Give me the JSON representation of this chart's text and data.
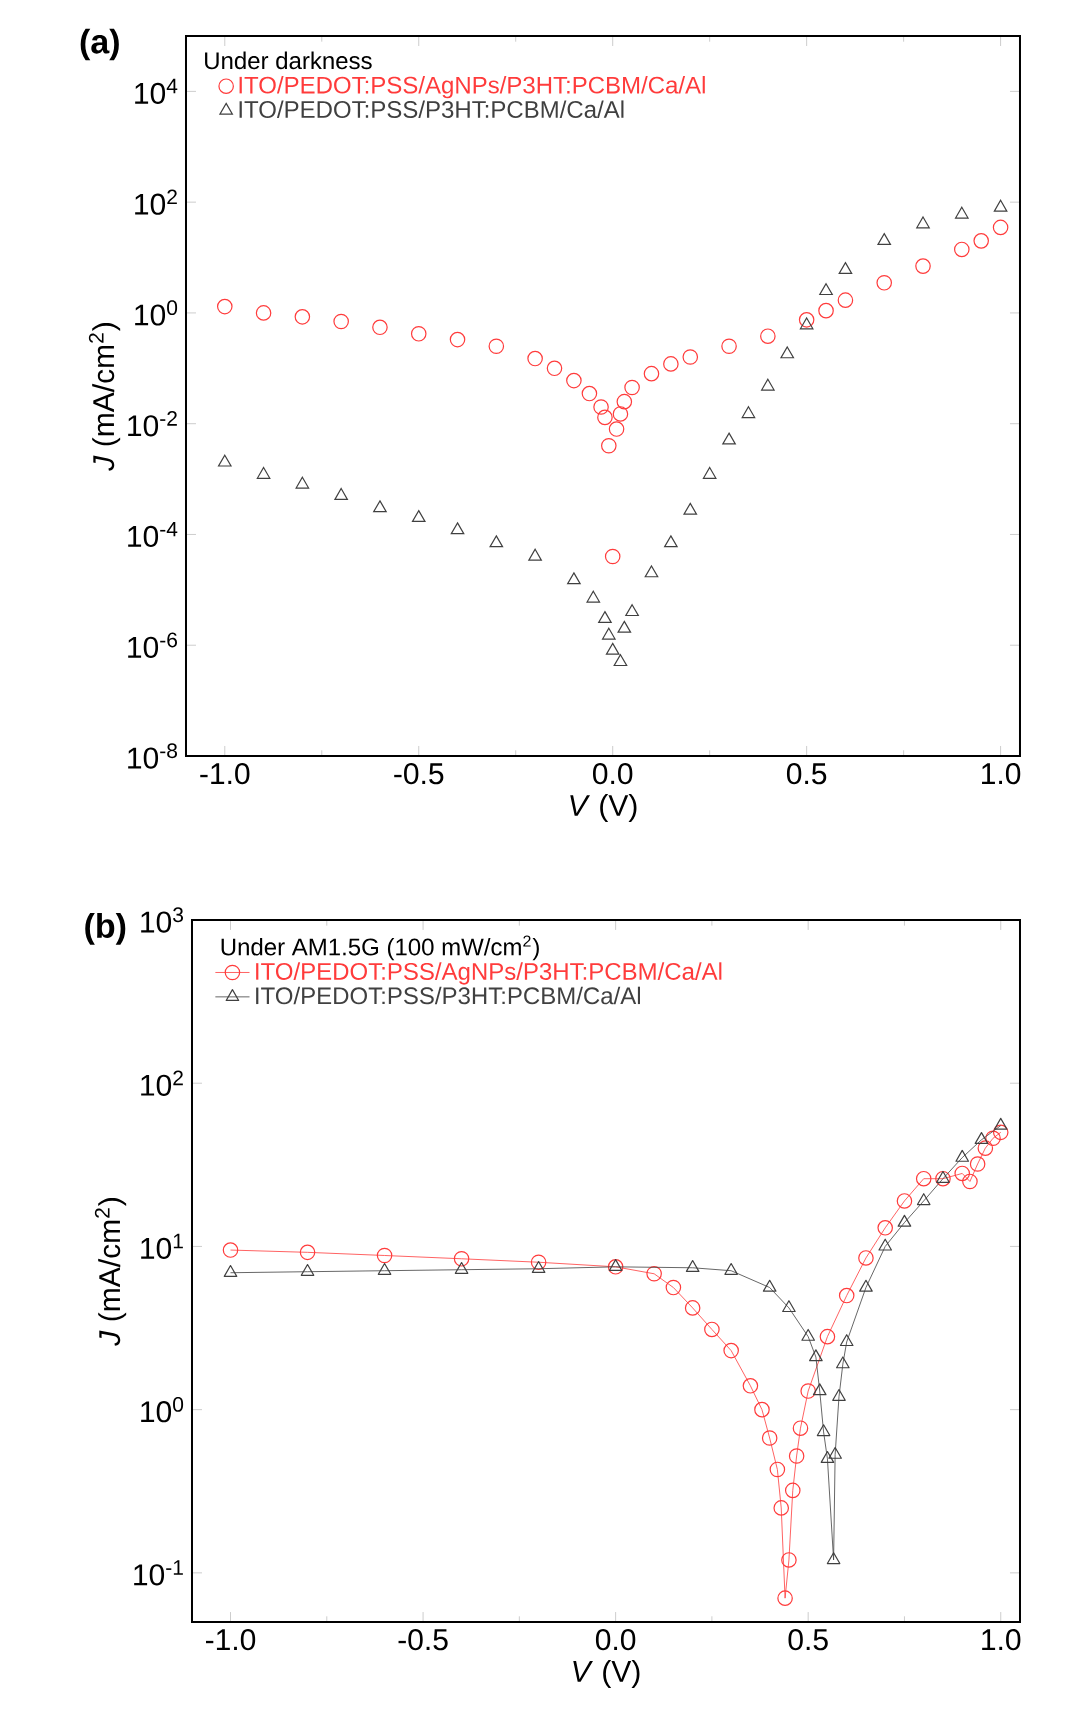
{
  "chart_data": [
    {
      "type": "scatter",
      "legend_title": "Under darkness",
      "annotations": [
        "(a)"
      ],
      "xlabel": "*V* (V)",
      "ylabel": "*J* (mA/cm$^{2}$)",
      "log": "y",
      "legend": "top left",
      "grid": false,
      "xlim": [
        -1.1,
        1.05
      ],
      "ylim": [
        1e-08,
        100000.0
      ],
      "xticks": [
        {
          "value": -1,
          "label": "-1.0"
        },
        {
          "value": -0.5,
          "label": "-0.5"
        },
        {
          "value": 0,
          "label": "0.0"
        },
        {
          "value": 0.5,
          "label": "0.5"
        },
        {
          "value": 1,
          "label": "1.0"
        }
      ],
      "yticks": [
        {
          "value": 1e-08,
          "label": "10$^{-8}$"
        },
        {
          "value": 1e-06,
          "label": "10$^{-6}$"
        },
        {
          "value": 0.0001,
          "label": "10$^{-4}$"
        },
        {
          "value": 0.01,
          "label": "10$^{-2}$"
        },
        {
          "value": 1,
          "label": "10$^{0}$"
        },
        {
          "value": 100,
          "label": "10$^{2}$"
        },
        {
          "value": 10000,
          "label": "10$^{4}$"
        }
      ],
      "series": [
        {
          "name": "ITO/PEDOT:PSS/AgNPs/P3HT:PCBM/Ca/Al",
          "color": "#ff3b3b",
          "marker": "circle",
          "x": [
            -1.0,
            -0.9,
            -0.8,
            -0.7,
            -0.6,
            -0.5,
            -0.4,
            -0.3,
            -0.2,
            -0.15,
            -0.1,
            -0.06,
            -0.03,
            -0.02,
            -0.01,
            0.0,
            0.01,
            0.02,
            0.03,
            0.05,
            0.1,
            0.15,
            0.2,
            0.3,
            0.4,
            0.5,
            0.55,
            0.6,
            0.7,
            0.8,
            0.9,
            0.95,
            1.0
          ],
          "values": [
            1.3,
            1.0,
            0.85,
            0.7,
            0.55,
            0.42,
            0.33,
            0.25,
            0.15,
            0.1,
            0.06,
            0.035,
            0.02,
            0.013,
            0.004,
            4e-05,
            0.008,
            0.015,
            0.025,
            0.045,
            0.08,
            0.12,
            0.16,
            0.25,
            0.38,
            0.75,
            1.1,
            1.7,
            3.5,
            7,
            14,
            20,
            35
          ]
        },
        {
          "name": "ITO/PEDOT:PSS/P3HT:PCBM/Ca/Al",
          "color": "#404040",
          "marker": "triangle",
          "x": [
            -1.0,
            -0.9,
            -0.8,
            -0.7,
            -0.6,
            -0.5,
            -0.4,
            -0.3,
            -0.2,
            -0.1,
            -0.05,
            -0.02,
            -0.01,
            0.0,
            0.02,
            0.03,
            0.05,
            0.1,
            0.15,
            0.2,
            0.25,
            0.3,
            0.35,
            0.4,
            0.45,
            0.5,
            0.55,
            0.6,
            0.7,
            0.8,
            0.9,
            1.0
          ],
          "values": [
            0.002,
            0.0012,
            0.0008,
            0.0005,
            0.0003,
            0.0002,
            0.00012,
            7e-05,
            4e-05,
            1.5e-05,
            7e-06,
            3e-06,
            1.5e-06,
            8e-07,
            5e-07,
            2e-06,
            4e-06,
            2e-05,
            7e-05,
            0.00027,
            0.0012,
            0.005,
            0.015,
            0.047,
            0.18,
            0.6,
            2.5,
            6,
            20,
            40,
            60,
            80
          ]
        }
      ]
    },
    {
      "type": "line",
      "legend_title": "Under AM1.5G (100 mW/cm$^{2}$)",
      "annotations": [
        "(b)"
      ],
      "xlabel": "*V* (V)",
      "ylabel": "*J* (mA/cm$^{2}$)",
      "log": "y",
      "legend": "top left",
      "grid": false,
      "line_style": "solid",
      "xlim": [
        -1.1,
        1.05
      ],
      "ylim": [
        0.05,
        1000
      ],
      "xticks": [
        {
          "value": -1,
          "label": "-1.0"
        },
        {
          "value": -0.5,
          "label": "-0.5"
        },
        {
          "value": 0,
          "label": "0.0"
        },
        {
          "value": 0.5,
          "label": "0.5"
        },
        {
          "value": 1,
          "label": "1.0"
        }
      ],
      "yticks": [
        {
          "value": 0.1,
          "label": "10$^{-1}$"
        },
        {
          "value": 1,
          "label": "10$^{0}$"
        },
        {
          "value": 10,
          "label": "10$^{1}$"
        },
        {
          "value": 100,
          "label": "10$^{2}$"
        },
        {
          "value": 1000,
          "label": "10$^{3}$"
        }
      ],
      "series": [
        {
          "name": "ITO/PEDOT:PSS/AgNPs/P3HT:PCBM/Ca/Al",
          "color": "#ff3b3b",
          "marker": "circle",
          "x": [
            -1.0,
            -0.8,
            -0.6,
            -0.4,
            -0.2,
            0.0,
            0.1,
            0.15,
            0.2,
            0.25,
            0.3,
            0.35,
            0.38,
            0.4,
            0.42,
            0.43,
            0.44,
            0.45,
            0.46,
            0.47,
            0.48,
            0.5,
            0.55,
            0.6,
            0.65,
            0.7,
            0.75,
            0.8,
            0.85,
            0.9,
            0.92,
            0.94,
            0.96,
            0.98,
            1.0
          ],
          "values": [
            9.5,
            9.2,
            8.8,
            8.4,
            8.0,
            7.5,
            6.8,
            5.6,
            4.2,
            3.1,
            2.3,
            1.4,
            1.0,
            0.67,
            0.43,
            0.25,
            0.07,
            0.12,
            0.32,
            0.52,
            0.77,
            1.3,
            2.8,
            5,
            8.5,
            13,
            19,
            26,
            26,
            28,
            25,
            32,
            40,
            46,
            50
          ]
        },
        {
          "name": "ITO/PEDOT:PSS/P3HT:PCBM/Ca/Al",
          "color": "#404040",
          "marker": "triangle",
          "x": [
            -1.0,
            -0.8,
            -0.6,
            -0.4,
            -0.2,
            0.0,
            0.2,
            0.3,
            0.4,
            0.45,
            0.5,
            0.52,
            0.53,
            0.54,
            0.55,
            0.566,
            0.57,
            0.58,
            0.59,
            0.6,
            0.65,
            0.7,
            0.75,
            0.8,
            0.85,
            0.9,
            0.95,
            1.0
          ],
          "values": [
            6.9,
            7.0,
            7.1,
            7.2,
            7.3,
            7.5,
            7.4,
            7.1,
            5.6,
            4.2,
            2.8,
            2.1,
            1.3,
            0.73,
            0.5,
            0.12,
            0.53,
            1.2,
            1.9,
            2.6,
            5.6,
            10,
            14,
            19,
            26,
            35,
            45,
            55
          ]
        }
      ]
    }
  ]
}
